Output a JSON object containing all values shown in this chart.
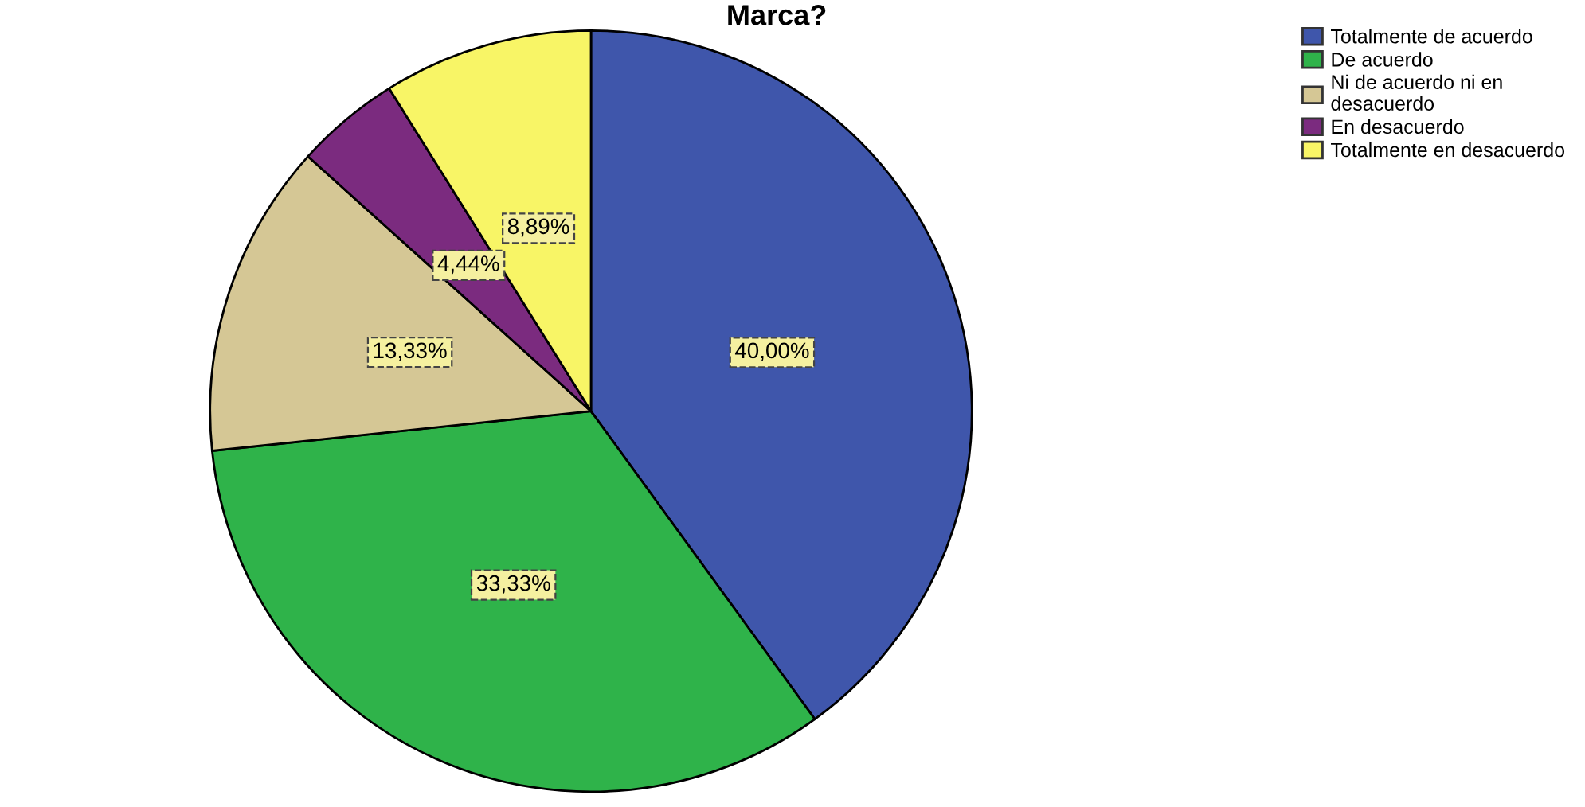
{
  "chart_data": {
    "type": "pie",
    "title": "Marca?",
    "categories": [
      "Totalmente de acuerdo",
      "De acuerdo",
      "Ni de acuerdo ni en desacuerdo",
      "En desacuerdo",
      "Totalmente en desacuerdo"
    ],
    "values": [
      40.0,
      33.33,
      13.33,
      4.44,
      8.89
    ],
    "colors": [
      "#3f56ab",
      "#2fb34a",
      "#d5c795",
      "#7b2b7f",
      "#f8f566"
    ],
    "value_labels": [
      "40,00%",
      "33,33%",
      "13,33%",
      "4,44%",
      "8,89%"
    ],
    "legend": "top right"
  }
}
